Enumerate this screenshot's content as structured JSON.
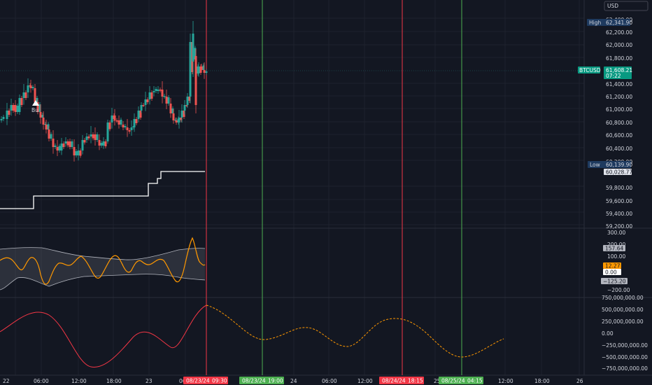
{
  "currency_button": "USD",
  "price_axis": {
    "labels": [
      "62,400.00",
      "62,200.00",
      "62,000.00",
      "61,800.00",
      "61,400.00",
      "61,200.00",
      "61,000.00",
      "60,800.00",
      "60,600.00",
      "60,400.00",
      "60,200.00",
      "59,800.00",
      "59,600.00",
      "59,400.00",
      "59,200.00"
    ],
    "high_label": "High",
    "high_value": "62,341.90",
    "symbol": "BTCUSD",
    "last_price": "61,608.21",
    "countdown": "07:22",
    "low_label": "Low",
    "low_value": "60,139.90",
    "line_value": "60,028.77"
  },
  "osc_axis": {
    "labels": [
      "300.00",
      "200.00",
      "100.00",
      "−200.00"
    ],
    "upper_value": "157.64",
    "orange_value": "12.27",
    "zero_value": "0.00",
    "lower_value": "−125.20"
  },
  "wave_axis": {
    "labels": [
      "750,000,000.00",
      "500,000,000.00",
      "250,000,000.00",
      "0.00",
      "−250,000,000.00",
      "−500,000,000.00",
      "−750,000,000.00"
    ]
  },
  "time_axis": {
    "labels": [
      "22",
      "06:00",
      "12:00",
      "18:00",
      "23",
      "06",
      "24",
      "06:00",
      "12:00",
      "25",
      "12:00",
      "18:00",
      "26"
    ],
    "markers": [
      {
        "date": "08/23/24",
        "time": "09:30",
        "color": "#f23645"
      },
      {
        "date": "08/23/24",
        "time": "19:00",
        "color": "#4caf50"
      },
      {
        "date": "08/24/24",
        "time": "18:15",
        "color": "#f23645"
      },
      {
        "date": "08/25/24",
        "time": "04:15",
        "color": "#4caf50"
      }
    ]
  },
  "signal_label": "Bu",
  "colors": {
    "up": "#26a69a",
    "down": "#ef5350",
    "wave": "#f23645",
    "osc": "#ff9800",
    "green_line": "#4caf50",
    "red_line": "#f23645"
  }
}
